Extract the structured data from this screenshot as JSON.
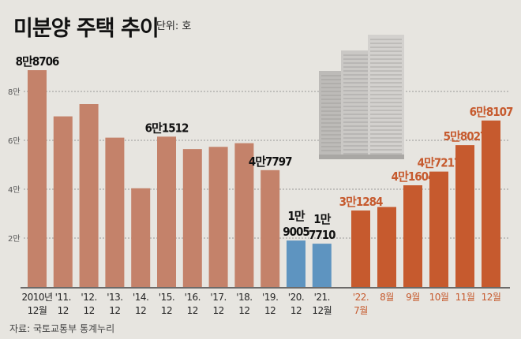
{
  "header": {
    "title": "미분양 주택 추이",
    "unit": "단위: 호"
  },
  "footer": {
    "source": "자료: 국토교통부 통계누리"
  },
  "illustration": {
    "icon": "apartment-buildings-icon"
  },
  "colors": {
    "past": "#c4826a",
    "covid": "#5e94c0",
    "recent": "#c65a2e",
    "recent_label": "#c65a2e",
    "grid": "#999999"
  },
  "chart_data": {
    "type": "bar",
    "title": "미분양 주택 추이",
    "unit": "호",
    "xlabel": "",
    "ylabel": "",
    "ylim": [
      0,
      100000
    ],
    "grid": true,
    "yticks": [
      {
        "value": 20000,
        "label": "2만"
      },
      {
        "value": 40000,
        "label": "4만"
      },
      {
        "value": 60000,
        "label": "6만"
      },
      {
        "value": 80000,
        "label": "8만"
      }
    ],
    "bars": [
      {
        "cat1": "2010년",
        "cat2": "12월",
        "value": 88706,
        "label": "8만8706",
        "group": "past"
      },
      {
        "cat1": "'11.",
        "cat2": "12",
        "value": 69807,
        "label": "",
        "group": "past"
      },
      {
        "cat1": "'12.",
        "cat2": "12",
        "value": 74835,
        "label": "",
        "group": "past"
      },
      {
        "cat1": "'13.",
        "cat2": "12",
        "value": 61091,
        "label": "",
        "group": "past"
      },
      {
        "cat1": "'14.",
        "cat2": "12",
        "value": 40379,
        "label": "",
        "group": "past"
      },
      {
        "cat1": "'15.",
        "cat2": "12",
        "value": 61512,
        "label": "6만1512",
        "group": "past"
      },
      {
        "cat1": "'16.",
        "cat2": "12",
        "value": 56413,
        "label": "",
        "group": "past"
      },
      {
        "cat1": "'17.",
        "cat2": "12",
        "value": 57330,
        "label": "",
        "group": "past"
      },
      {
        "cat1": "'18.",
        "cat2": "12",
        "value": 58838,
        "label": "",
        "group": "past"
      },
      {
        "cat1": "'19.",
        "cat2": "12",
        "value": 47797,
        "label": "4만7797",
        "group": "past"
      },
      {
        "cat1": "'20.",
        "cat2": "12",
        "value": 19005,
        "label": "1만\n9005",
        "group": "covid"
      },
      {
        "cat1": "'21.",
        "cat2": "12월",
        "value": 17710,
        "label": "1만\n7710",
        "group": "covid"
      },
      {
        "cat1": "'22.",
        "cat2": "7월",
        "value": 31284,
        "label": "3만1284",
        "group": "recent"
      },
      {
        "cat1": "8월",
        "cat2": "",
        "value": 32722,
        "label": "",
        "group": "recent"
      },
      {
        "cat1": "9월",
        "cat2": "",
        "value": 41604,
        "label": "4만1604",
        "group": "recent"
      },
      {
        "cat1": "10월",
        "cat2": "",
        "value": 47217,
        "label": "4만7217",
        "group": "recent"
      },
      {
        "cat1": "11월",
        "cat2": "",
        "value": 58027,
        "label": "5만8027",
        "group": "recent"
      },
      {
        "cat1": "12월",
        "cat2": "",
        "value": 68107,
        "label": "6만8107",
        "group": "recent"
      }
    ]
  }
}
